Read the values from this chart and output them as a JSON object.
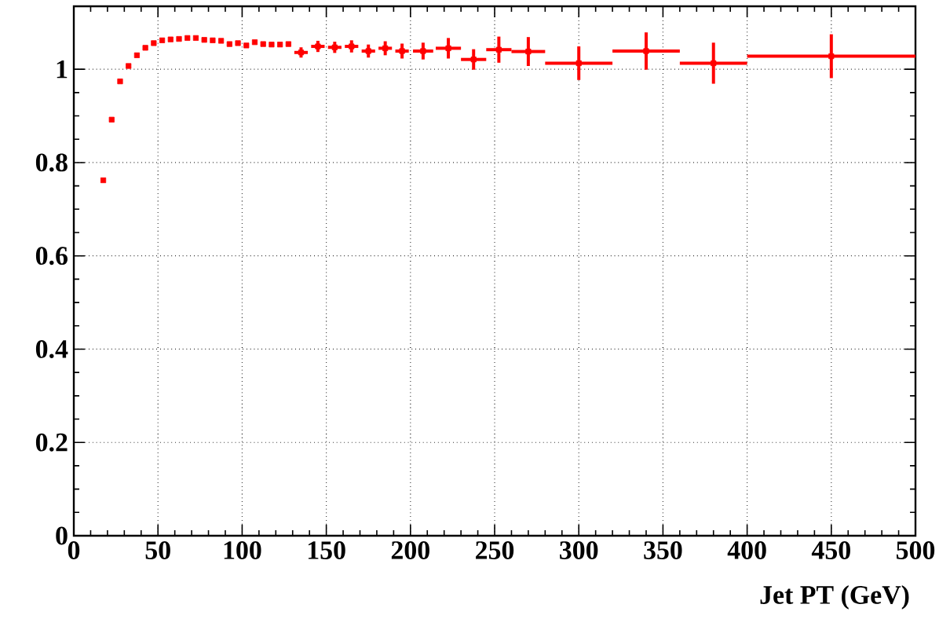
{
  "chart_data": {
    "type": "scatter",
    "xlabel": "Jet  PT (GeV)",
    "color": "#ff0000",
    "marker": "square",
    "grid": true,
    "x": [
      17.5,
      22.5,
      27.5,
      32.5,
      37.5,
      42.5,
      47.5,
      52.5,
      57.5,
      62.5,
      67.5,
      72.5,
      77.5,
      82.5,
      87.5,
      92.5,
      97.5,
      102.5,
      107.5,
      112.5,
      117.5,
      122.5,
      127.5,
      135,
      145,
      155,
      165,
      175,
      185,
      195,
      207.5,
      222.5,
      237.5,
      252.5,
      270,
      300,
      340,
      380,
      450
    ],
    "values": [
      0.762,
      0.892,
      0.974,
      1.007,
      1.03,
      1.046,
      1.056,
      1.062,
      1.064,
      1.065,
      1.067,
      1.067,
      1.063,
      1.062,
      1.061,
      1.054,
      1.056,
      1.051,
      1.058,
      1.054,
      1.053,
      1.053,
      1.054,
      1.036,
      1.049,
      1.047,
      1.049,
      1.039,
      1.045,
      1.039,
      1.039,
      1.045,
      1.021,
      1.042,
      1.038,
      1.013,
      1.039,
      1.013,
      1.028
    ],
    "xerrors": [
      null,
      null,
      null,
      null,
      null,
      null,
      null,
      null,
      null,
      null,
      null,
      null,
      null,
      null,
      null,
      null,
      null,
      null,
      null,
      null,
      null,
      null,
      null,
      4,
      4,
      4,
      4,
      4,
      4,
      4,
      6,
      7.5,
      7.5,
      7.5,
      10,
      20,
      20,
      20,
      50
    ],
    "errors": [
      null,
      null,
      null,
      null,
      null,
      null,
      null,
      null,
      null,
      null,
      null,
      null,
      null,
      null,
      null,
      null,
      null,
      null,
      null,
      null,
      null,
      null,
      null,
      0.011,
      0.012,
      0.012,
      0.013,
      0.014,
      0.015,
      0.016,
      0.018,
      0.022,
      0.022,
      0.028,
      0.031,
      0.036,
      0.04,
      0.044,
      0.047
    ],
    "xlim": [
      0,
      500
    ],
    "ylim": [
      0,
      1.135
    ],
    "xticks": [
      0,
      50,
      100,
      150,
      200,
      250,
      300,
      350,
      400,
      450,
      500
    ],
    "yticks": [
      0,
      0.2,
      0.4,
      0.6,
      0.8,
      1
    ]
  }
}
